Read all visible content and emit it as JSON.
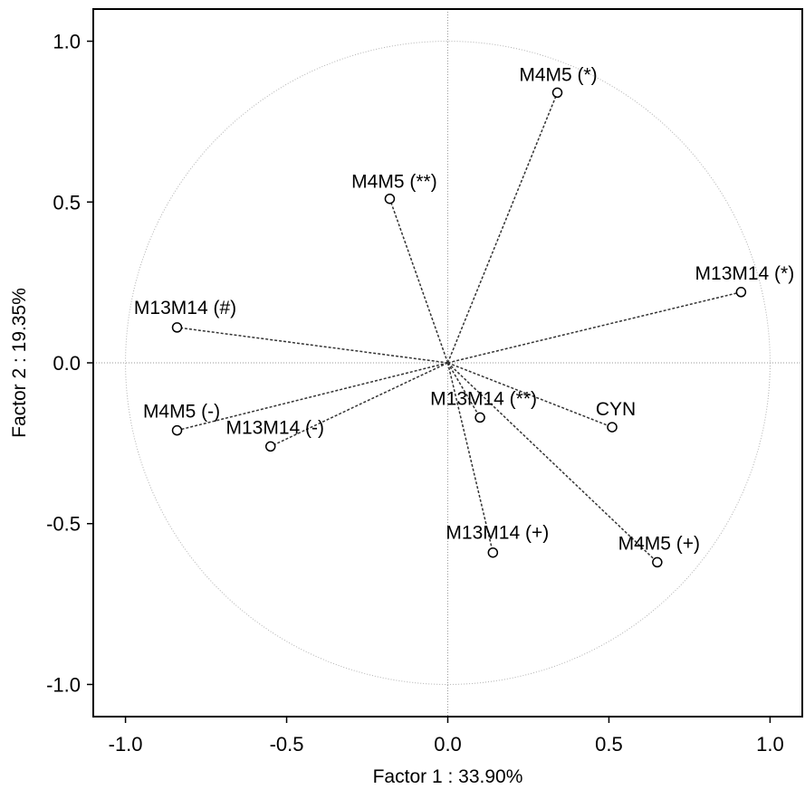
{
  "chart_data": {
    "type": "scatter",
    "subtype": "pca-correlation-circle",
    "title": "",
    "xlabel": "Factor 1 : 33.90%",
    "ylabel": "Factor 2 : 19.35%",
    "xlim": [
      -1.1,
      1.1
    ],
    "ylim": [
      -1.1,
      1.1
    ],
    "xticks": [
      -1.0,
      -0.5,
      0.0,
      0.5,
      1.0
    ],
    "yticks": [
      -1.0,
      -0.5,
      0.0,
      0.5,
      1.0
    ],
    "xtick_labels": [
      "-1.0",
      "-0.5",
      "0.0",
      "0.5",
      "1.0"
    ],
    "ytick_labels": [
      "-1.0",
      "-0.5",
      "0.0",
      "0.5",
      "1.0"
    ],
    "grid": true,
    "unit_circle": true,
    "vectors_from_origin": true,
    "points": [
      {
        "label": "M4M5 (*)",
        "x": 0.34,
        "y": 0.84
      },
      {
        "label": "M4M5 (**)",
        "x": -0.18,
        "y": 0.51
      },
      {
        "label": "M13M14 (*)",
        "x": 0.91,
        "y": 0.22
      },
      {
        "label": "M13M14 (#)",
        "x": -0.84,
        "y": 0.11
      },
      {
        "label": "M4M5 (-)",
        "x": -0.84,
        "y": -0.21
      },
      {
        "label": "M13M14 (-)",
        "x": -0.55,
        "y": -0.26
      },
      {
        "label": "M13M14 (**)",
        "x": 0.1,
        "y": -0.17
      },
      {
        "label": "CYN",
        "x": 0.51,
        "y": -0.2
      },
      {
        "label": "M13M14 (+)",
        "x": 0.14,
        "y": -0.59
      },
      {
        "label": "M4M5 (+)",
        "x": 0.65,
        "y": -0.62
      }
    ]
  }
}
